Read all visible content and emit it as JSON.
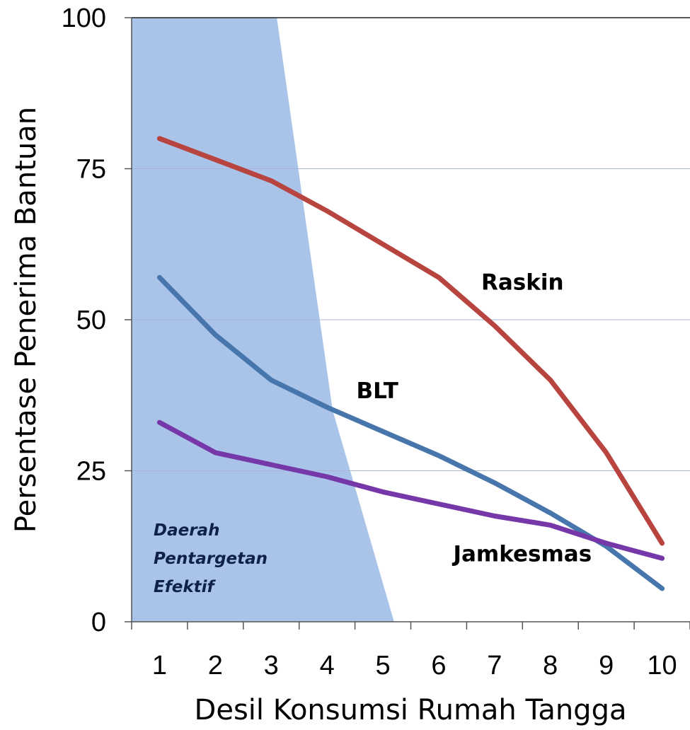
{
  "chart_data": {
    "type": "line",
    "title": "",
    "xlabel": "Desil Konsumsi Rumah Tangga",
    "ylabel": "Persentase Penerima Bantuan",
    "categories": [
      "1",
      "2",
      "3",
      "4",
      "5",
      "6",
      "7",
      "8",
      "9",
      "10"
    ],
    "ylim": [
      0,
      100
    ],
    "yticks": [
      "0",
      "25",
      "50",
      "75",
      "100"
    ],
    "grid": true,
    "series": [
      {
        "name": "Raskin",
        "color": "#b84440",
        "values": [
          80,
          76.5,
          73,
          68,
          62.5,
          57,
          49,
          40,
          28,
          13
        ]
      },
      {
        "name": "BLT",
        "color": "#4776ad",
        "values": [
          57,
          47.5,
          40,
          35.5,
          31.5,
          27.5,
          23,
          18,
          12.5,
          5.5
        ]
      },
      {
        "name": "Jamkesmas",
        "color": "#7638a8",
        "values": [
          33,
          28,
          26,
          24,
          21.5,
          19.5,
          17.5,
          16,
          13,
          10.5
        ]
      }
    ],
    "shaded_region": {
      "label_lines": [
        "Daerah",
        "Pentargetan",
        "Efektif"
      ],
      "color": "#a9c4e8",
      "boundary": [
        {
          "x": 0.5,
          "y": 100
        },
        {
          "x": 3.1,
          "y": 100
        },
        {
          "x": 4.1,
          "y": 35
        },
        {
          "x": 5.2,
          "y": 0
        },
        {
          "x": 0.5,
          "y": 0
        }
      ]
    }
  }
}
